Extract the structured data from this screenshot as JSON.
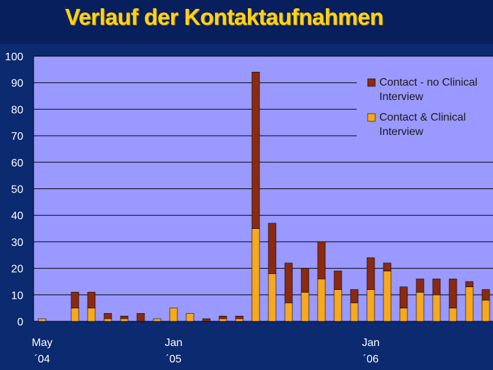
{
  "chart_data": {
    "type": "bar",
    "stacked": true,
    "title": "Verlauf der Kontaktaufnahmen",
    "ylim": [
      0,
      100
    ],
    "y_ticks": [
      0,
      10,
      20,
      30,
      40,
      50,
      60,
      70,
      80,
      90,
      100
    ],
    "x_tick_labels": [
      {
        "index": 0,
        "line1": "May",
        "line2": "´04"
      },
      {
        "index": 8,
        "line1": "Jan",
        "line2": "´05"
      },
      {
        "index": 20,
        "line1": "Jan",
        "line2": "´06"
      }
    ],
    "num_categories": 28,
    "series": [
      {
        "name": "Contact & Clinical Interview",
        "color": "#f8a81c",
        "values": [
          1,
          0,
          5,
          5,
          1,
          1,
          0,
          1,
          5,
          3,
          0,
          1,
          1,
          35,
          18,
          7,
          11,
          16,
          12,
          7,
          12,
          19,
          5,
          11,
          10,
          5,
          13,
          8
        ]
      },
      {
        "name": "Contact - no Clinical Interview",
        "color": "#8b2a10",
        "values": [
          0,
          0,
          6,
          6,
          2,
          1,
          3,
          0,
          0,
          0,
          1,
          1,
          1,
          59,
          19,
          15,
          9,
          14,
          7,
          5,
          12,
          3,
          8,
          5,
          6,
          11,
          2,
          4
        ]
      }
    ],
    "legend": {
      "placement": "top-right",
      "entries": [
        {
          "line1": "Contact - no Clinical",
          "line2": "Interview",
          "color": "#8b2a10"
        },
        {
          "line1": "Contact & Clinical",
          "line2": "Interview",
          "color": "#f8a81c"
        }
      ]
    },
    "grid": true,
    "plot_background": "#9999ff"
  }
}
